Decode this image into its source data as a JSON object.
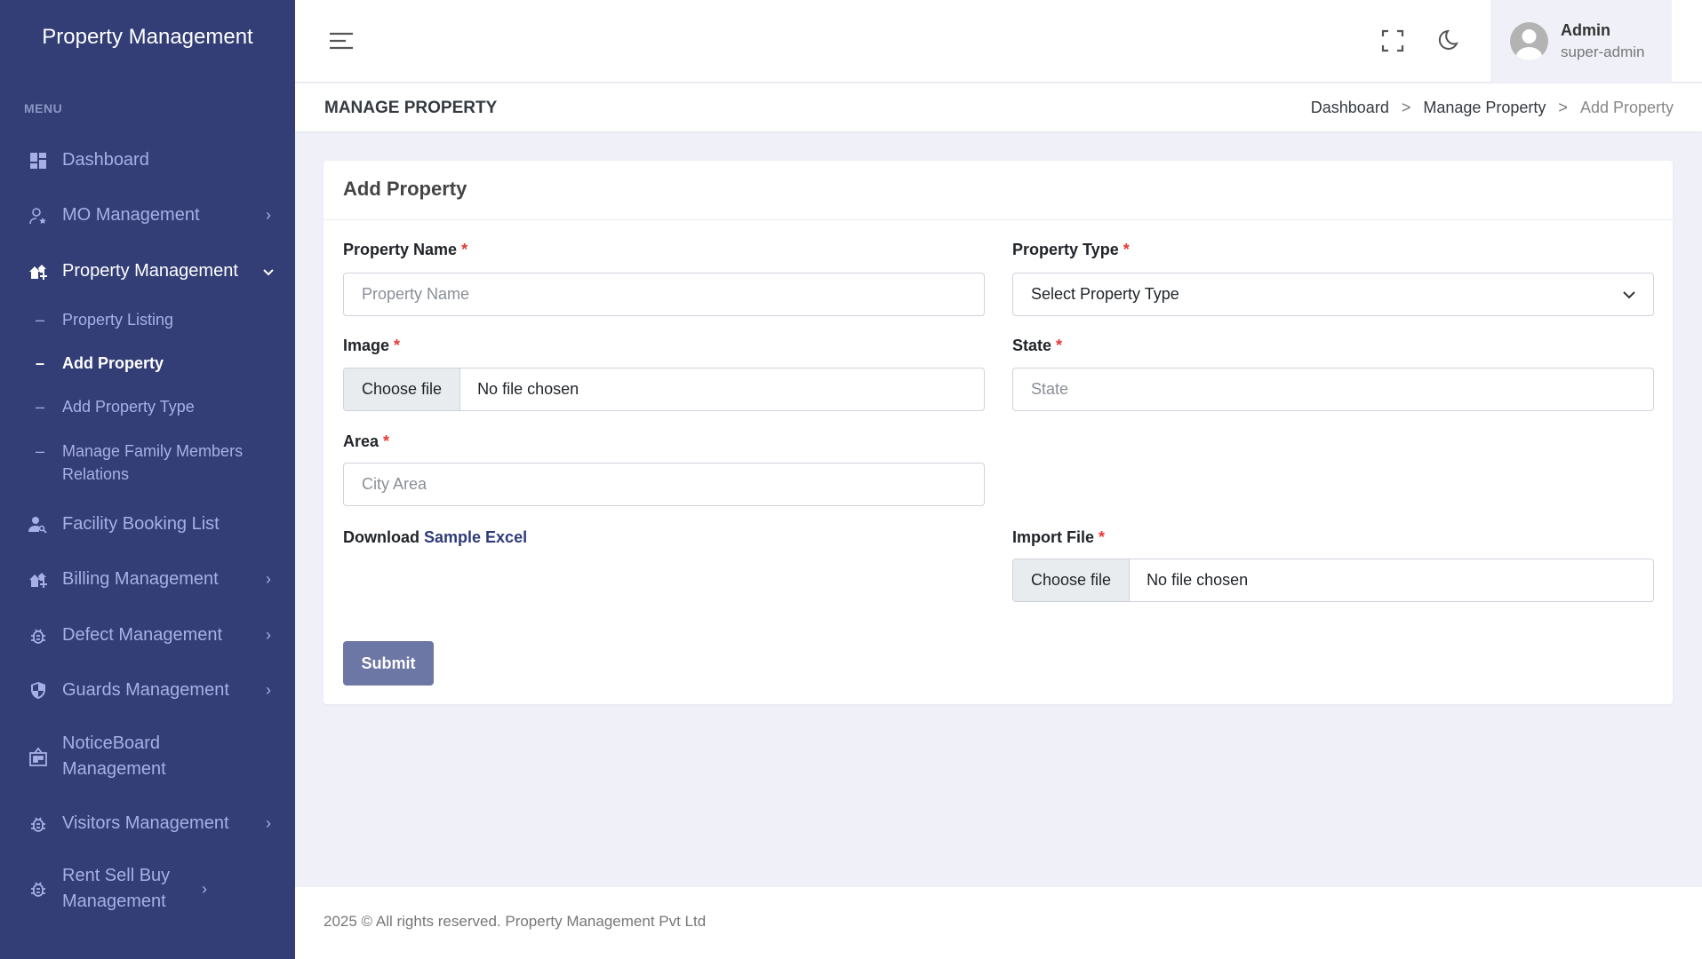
{
  "sidebar": {
    "brand": "Property Management",
    "menu_title": "MENU",
    "items": [
      {
        "label": "Dashboard",
        "icon": "dashboard-icon"
      },
      {
        "label": "MO Management",
        "icon": "user-star-icon"
      },
      {
        "label": "Property Management",
        "icon": "houses-add-icon"
      },
      {
        "label": "Facility Booking List",
        "icon": "user-search-icon"
      },
      {
        "label": "Billing Management",
        "icon": "houses-add-icon"
      },
      {
        "label": "Defect Management",
        "icon": "bug-icon"
      },
      {
        "label": "Guards Management",
        "icon": "shield-icon"
      },
      {
        "label": "NoticeBoard Management",
        "icon": "noticeboard-icon"
      },
      {
        "label": "Visitors Management",
        "icon": "bug-icon"
      },
      {
        "label": "Rent Sell Buy Management",
        "icon": "bug-icon"
      }
    ],
    "sub_items": [
      "Property Listing",
      "Add Property",
      "Add Property Type",
      "Manage Family Members Relations"
    ],
    "sub_dash": "–"
  },
  "header": {
    "user_name": "Admin",
    "user_role": "super-admin"
  },
  "page": {
    "title": "MANAGE PROPERTY",
    "breadcrumb": [
      "Dashboard",
      "Manage Property",
      "Add Property"
    ],
    "sep": ">"
  },
  "form": {
    "title": "Add Property",
    "required_mark": "*",
    "property_name": {
      "label": "Property Name",
      "placeholder": "Property Name"
    },
    "property_type": {
      "label": "Property Type",
      "value": "Select Property Type"
    },
    "image": {
      "label": "Image",
      "button": "Choose file",
      "status": "No file chosen"
    },
    "state": {
      "label": "State",
      "placeholder": "State"
    },
    "area": {
      "label": "Area",
      "placeholder": "City Area"
    },
    "download_prefix": "Download",
    "download_link": "Sample Excel",
    "import_file": {
      "label": "Import File",
      "button": "Choose file",
      "status": "No file chosen"
    },
    "submit": "Submit"
  },
  "footer": {
    "text": "2025 © All rights reserved. Property Management Pvt Ltd"
  },
  "colors": {
    "sidebar": "#323e75",
    "accent": "#6d77a5",
    "link": "#2e3a7a",
    "required": "#e53935"
  }
}
